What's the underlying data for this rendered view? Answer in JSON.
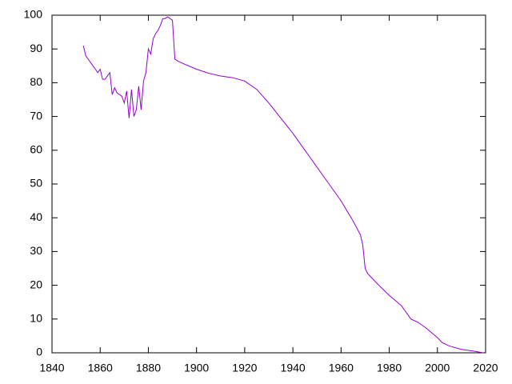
{
  "chart_data": {
    "type": "line",
    "color": "#9400d3",
    "x": [
      1853,
      1854,
      1855,
      1856,
      1857,
      1858,
      1859,
      1860,
      1861,
      1862,
      1863,
      1864,
      1865,
      1866,
      1867,
      1868,
      1869,
      1870,
      1871,
      1872,
      1873,
      1874,
      1875,
      1876,
      1877,
      1878,
      1879,
      1880,
      1881,
      1882,
      1883,
      1884,
      1885,
      1886,
      1887,
      1888,
      1889,
      1890,
      1891,
      1892,
      1895,
      1900,
      1905,
      1910,
      1915,
      1920,
      1925,
      1930,
      1935,
      1940,
      1945,
      1950,
      1955,
      1960,
      1965,
      1968,
      1969,
      1970,
      1971,
      1975,
      1980,
      1985,
      1988,
      1989,
      1992,
      1995,
      2000,
      2002,
      2005,
      2010,
      2015,
      2019
    ],
    "values": [
      91,
      88,
      87,
      86,
      85,
      84,
      83,
      84,
      81,
      81,
      82,
      83,
      76.5,
      78.5,
      77,
      76.5,
      76,
      74,
      77.5,
      69.5,
      78,
      70,
      72,
      79,
      72,
      80.5,
      83,
      90,
      88.5,
      93,
      94.5,
      95.5,
      97,
      99,
      99,
      99.5,
      99,
      98.5,
      87,
      86.5,
      85.5,
      84,
      82.8,
      82,
      81.5,
      80.5,
      78,
      74,
      69.5,
      65,
      60,
      55,
      50,
      45,
      39,
      35,
      32,
      25,
      23.5,
      20.5,
      17,
      14,
      11,
      10,
      9,
      7.5,
      4.5,
      3,
      2,
      1,
      0.5,
      0
    ],
    "xlim": [
      1840,
      2020
    ],
    "xticks": [
      1840,
      1860,
      1880,
      1900,
      1920,
      1940,
      1960,
      1980,
      2000,
      2020
    ],
    "ylim": [
      0,
      100
    ],
    "yticks": [
      0,
      10,
      20,
      30,
      40,
      50,
      60,
      70,
      80,
      90,
      100
    ]
  }
}
